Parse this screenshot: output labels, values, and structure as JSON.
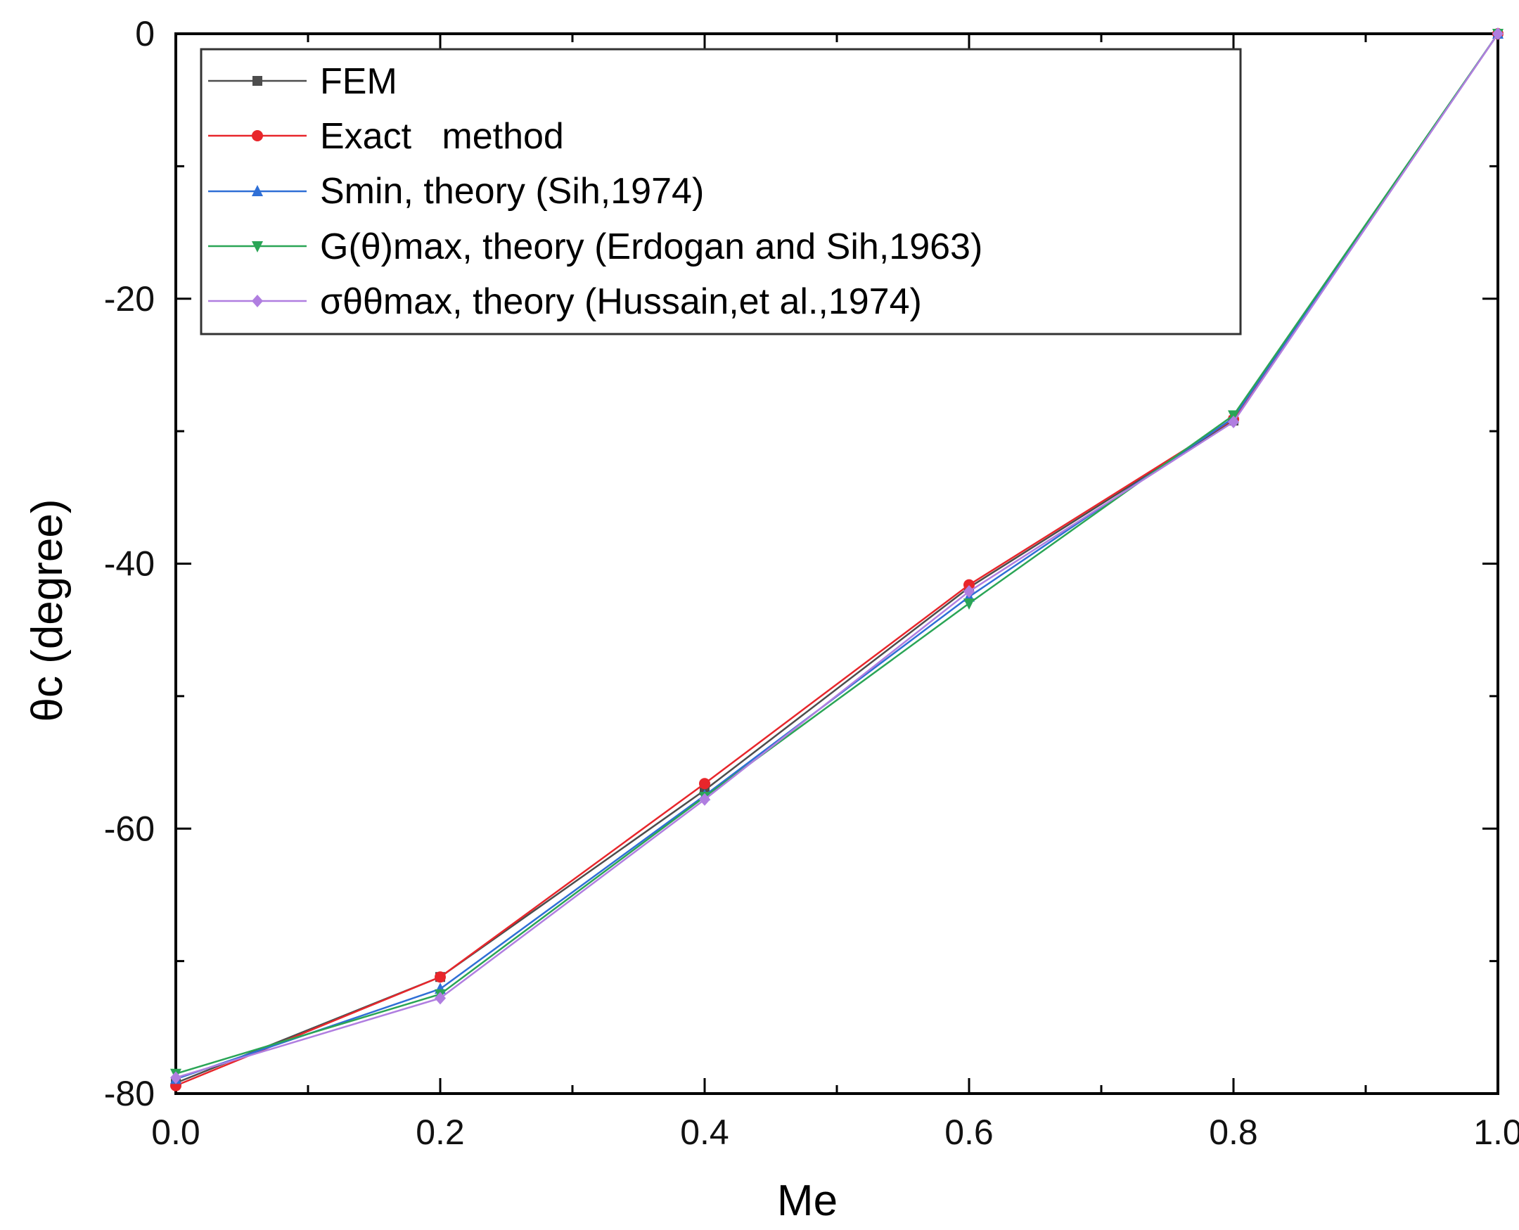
{
  "chart_data": {
    "type": "line",
    "title": "",
    "xlabel": "Me",
    "ylabel": "θc (degree)",
    "xlim": [
      0.0,
      1.0
    ],
    "ylim": [
      -80,
      0
    ],
    "x_ticks": [
      "0.0",
      "0.2",
      "0.4",
      "0.6",
      "0.8",
      "1.0"
    ],
    "y_ticks": [
      "0",
      "-20",
      "-40",
      "-60",
      "-80"
    ],
    "x_tick_values": [
      0.0,
      0.2,
      0.4,
      0.6,
      0.8,
      1.0
    ],
    "y_tick_values": [
      0,
      -20,
      -40,
      -60,
      -80
    ],
    "x_minor_ticks": [
      0.1,
      0.3,
      0.5,
      0.7,
      0.9
    ],
    "y_minor_ticks": [
      -10,
      -30,
      -50,
      -70
    ],
    "legend_position": "top-left",
    "x": [
      0.0,
      0.2,
      0.4,
      0.6,
      0.8,
      1.0
    ],
    "series": [
      {
        "name": "FEM",
        "color": "#4d4d4d",
        "marker": "square",
        "values": [
          -79.2,
          -71.2,
          -57.1,
          -41.8,
          -29.2,
          0
        ]
      },
      {
        "name": "Exact   method",
        "color": "#e8262b",
        "marker": "circle",
        "values": [
          -79.4,
          -71.2,
          -56.6,
          -41.6,
          -29.1,
          0
        ]
      },
      {
        "name": "Smin, theory (Sih,1974)",
        "color": "#2f6fd6",
        "marker": "triangle-up",
        "values": [
          -78.9,
          -72.1,
          -57.5,
          -42.5,
          -29.0,
          0
        ]
      },
      {
        "name": "G(θ)max, theory (Erdogan and Sih,1963)",
        "color": "#2aa556",
        "marker": "triangle-down",
        "values": [
          -78.5,
          -72.5,
          -57.6,
          -43.0,
          -28.8,
          0
        ]
      },
      {
        "name": "σθθmax, theory (Hussain,et al.,1974)",
        "color": "#b07ee0",
        "marker": "diamond",
        "values": [
          -78.8,
          -72.8,
          -57.8,
          -42.1,
          -29.3,
          0
        ]
      }
    ]
  }
}
